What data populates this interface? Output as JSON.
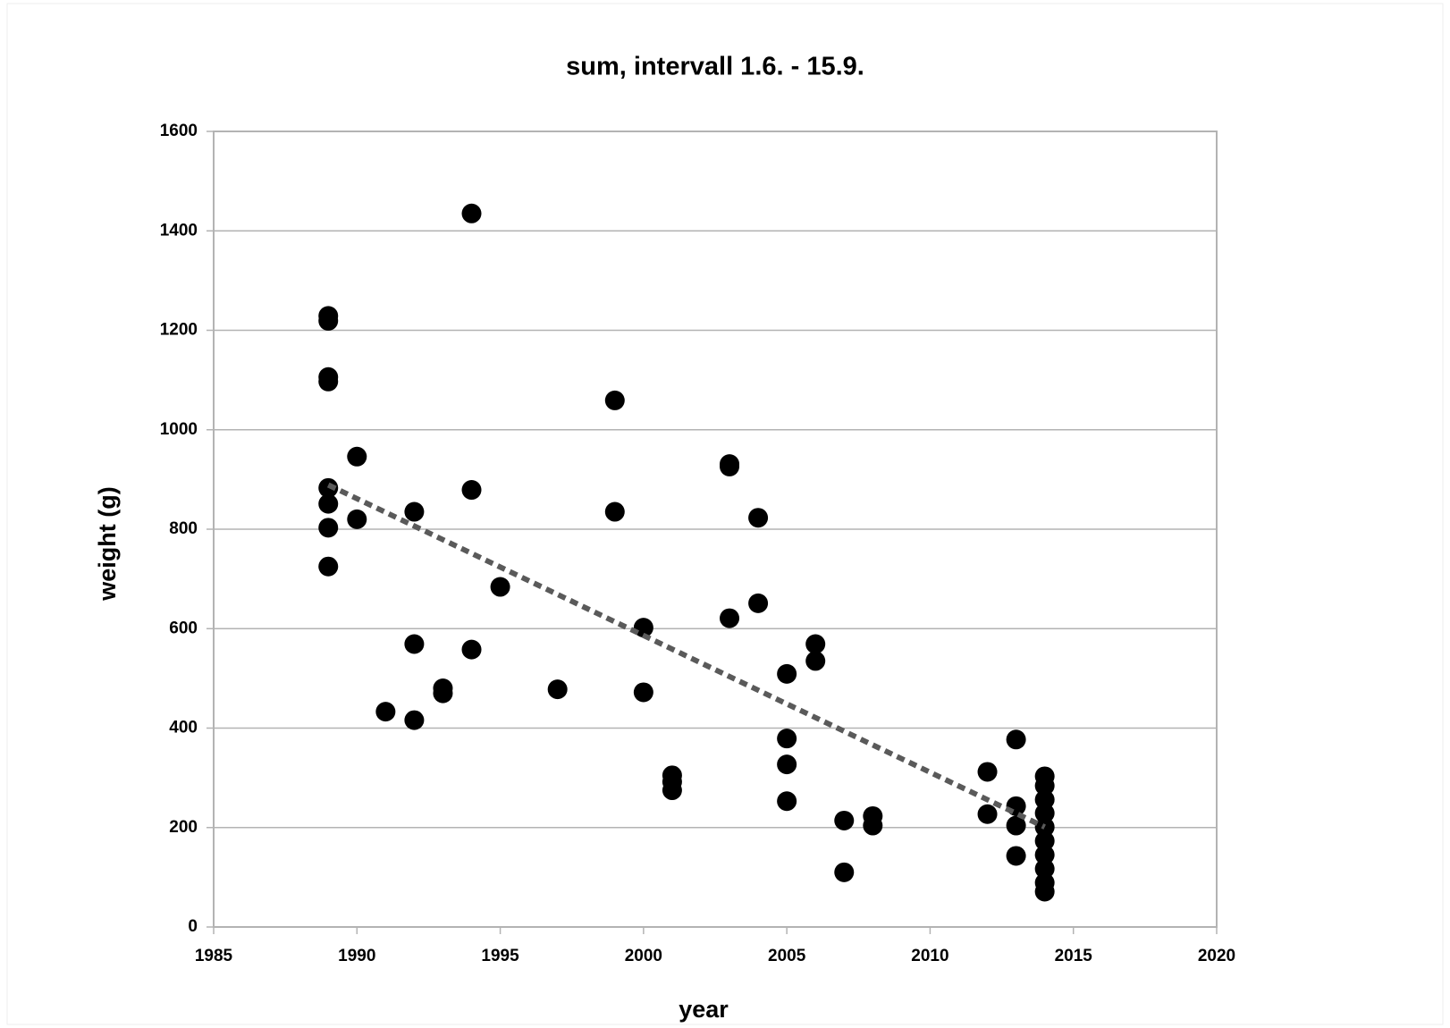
{
  "chart_data": {
    "type": "scatter",
    "title": "sum, intervall 1.6. - 15.9.",
    "x_label": "year",
    "y_label": "weight  (g)",
    "x": [
      1989,
      1989,
      1989,
      1989,
      1989,
      1989,
      1989,
      1989,
      1990,
      1990,
      1991,
      1992,
      1992,
      1992,
      1993,
      1993,
      1994,
      1994,
      1994,
      1995,
      1997,
      1999,
      1999,
      2000,
      2000,
      2001,
      2001,
      2001,
      2003,
      2003,
      2003,
      2004,
      2004,
      2005,
      2005,
      2005,
      2005,
      2006,
      2006,
      2007,
      2007,
      2008,
      2008,
      2012,
      2012,
      2013,
      2013,
      2013,
      2013,
      2014,
      2014,
      2014,
      2014,
      2014,
      2014,
      2014,
      2014,
      2014,
      2014
    ],
    "values": [
      1229,
      1219,
      1106,
      1097,
      883,
      851,
      803,
      725,
      946,
      820,
      433,
      835,
      569,
      416,
      480,
      470,
      1435,
      879,
      558,
      684,
      478,
      1059,
      835,
      602,
      472,
      305,
      292,
      275,
      931,
      926,
      621,
      823,
      651,
      509,
      379,
      327,
      253,
      569,
      535,
      214,
      110,
      223,
      204,
      312,
      227,
      377,
      243,
      204,
      143,
      303,
      284,
      256,
      229,
      201,
      173,
      145,
      117,
      89,
      71
    ],
    "color": "#000000",
    "trendline": {
      "x": [
        1989,
        2014
      ],
      "values": [
        889,
        201
      ],
      "color": "#5a5a5a"
    },
    "xlim": [
      1985,
      2020
    ],
    "xticks": [
      1985,
      1990,
      1995,
      2000,
      2005,
      2010,
      2015,
      2020
    ],
    "ylim": [
      0,
      1600
    ],
    "yticks": [
      0,
      200,
      400,
      600,
      800,
      1000,
      1200,
      1400,
      1600
    ],
    "grid": true
  }
}
